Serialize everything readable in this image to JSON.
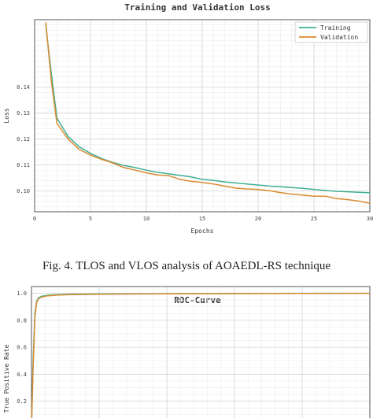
{
  "chart_data": [
    {
      "type": "line",
      "title": "Training and Validation Loss",
      "xlabel": "Epochs",
      "ylabel": "Loss",
      "xlim": [
        0,
        30
      ],
      "ylim": [
        0.092,
        0.166
      ],
      "xticks": [
        0,
        5,
        10,
        15,
        20,
        25,
        30
      ],
      "yticks": [
        0.1,
        0.11,
        0.12,
        0.13,
        0.14
      ],
      "grid": true,
      "legend_position": "top-right",
      "x": [
        1,
        1.5,
        2,
        3,
        4,
        5,
        6,
        7,
        8,
        9,
        10,
        11,
        12,
        13,
        14,
        15,
        16,
        17,
        18,
        19,
        20,
        21,
        22,
        23,
        24,
        25,
        26,
        27,
        28,
        29,
        30
      ],
      "series": [
        {
          "name": "Training",
          "color": "#3fae94",
          "values": [
            0.164,
            0.145,
            0.128,
            0.121,
            0.117,
            0.1145,
            0.1125,
            0.111,
            0.1098,
            0.109,
            0.108,
            0.1072,
            0.1066,
            0.106,
            0.1054,
            0.1045,
            0.1041,
            0.1035,
            0.1031,
            0.1027,
            0.1023,
            0.1019,
            0.1016,
            0.1013,
            0.101,
            0.1006,
            0.1002,
            0.0999,
            0.0997,
            0.0995,
            0.0993
          ]
        },
        {
          "name": "Validation",
          "color": "#d98a2e",
          "values": [
            0.165,
            0.142,
            0.126,
            0.12,
            0.116,
            0.1138,
            0.1122,
            0.1108,
            0.109,
            0.108,
            0.107,
            0.1062,
            0.1059,
            0.1045,
            0.1037,
            0.1033,
            0.1027,
            0.1019,
            0.1011,
            0.1008,
            0.1006,
            0.1001,
            0.0994,
            0.0988,
            0.0984,
            0.098,
            0.098,
            0.0971,
            0.0967,
            0.0961,
            0.0953
          ]
        }
      ]
    },
    {
      "type": "line",
      "title": "ROC-Curve",
      "ylabel": "True Positive Rate",
      "xlim": [
        0,
        1
      ],
      "ylim": [
        0,
        1.05
      ],
      "yticks": [
        0.2,
        0.4,
        0.6,
        0.8,
        1.0
      ],
      "grid": true,
      "series": [
        {
          "color": "#3fae94",
          "x": [
            0,
            0.005,
            0.01,
            0.015,
            0.02,
            0.03,
            0.05,
            0.08,
            0.12,
            0.2,
            0.4,
            0.7,
            1
          ],
          "y": [
            0,
            0.5,
            0.85,
            0.94,
            0.965,
            0.978,
            0.986,
            0.99,
            0.993,
            0.995,
            0.997,
            0.999,
            1
          ]
        },
        {
          "color": "#d98a2e",
          "x": [
            0,
            0.005,
            0.01,
            0.015,
            0.02,
            0.03,
            0.05,
            0.08,
            0.12,
            0.2,
            0.4,
            0.7,
            1
          ],
          "y": [
            0,
            0.45,
            0.82,
            0.93,
            0.958,
            0.972,
            0.982,
            0.987,
            0.99,
            0.993,
            0.996,
            0.998,
            1
          ]
        }
      ]
    }
  ],
  "captions": {
    "fig4": "Fig. 4. TLOS and VLOS analysis of AOAEDL-RS technique"
  }
}
